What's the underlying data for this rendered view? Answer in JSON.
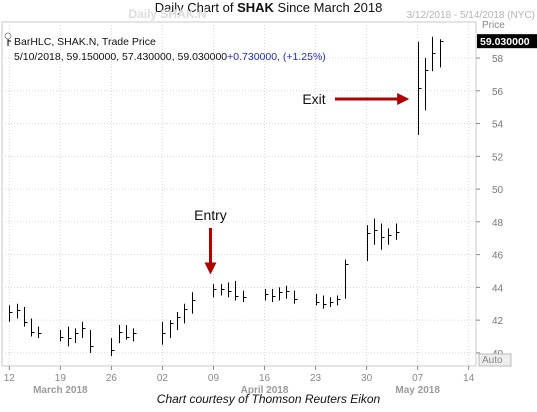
{
  "title": {
    "prefix": "Daily Chart of ",
    "ticker": "SHAK",
    "suffix": " Since March 2018"
  },
  "watermark": "Daily SHAK.N",
  "date_range_label": "3/12/2018 - 5/14/2018 (NYC)",
  "legend": {
    "line1": "BarHLC, SHAK.N, Trade Price",
    "line2_prefix": "5/10/2018, 59.150000, 57.430000, 59.030000",
    "line2_change": "+0.730000, (+1.25%)"
  },
  "price_axis": {
    "title": "Price",
    "last_price_label": "59.030000",
    "auto_label": "Auto"
  },
  "annotations": {
    "entry": "Entry",
    "exit": "Exit"
  },
  "footer": "Chart courtesy of Thomson Reuters Eikon",
  "colors": {
    "bar": "#000000",
    "arrow": "#b00000",
    "change_text": "#1f2bd6",
    "axis_label": "#8a8a8a",
    "grid": "#d8d8d8"
  },
  "chart_data": {
    "type": "bar",
    "series": [
      {
        "name": "SHAK.N",
        "bars": [
          {
            "x": "2018-03-12",
            "high": 42.9,
            "low": 41.9,
            "close": 42.5
          },
          {
            "x": "2018-03-13",
            "high": 43.0,
            "low": 42.1,
            "close": 42.6
          },
          {
            "x": "2018-03-14",
            "high": 42.8,
            "low": 41.6,
            "close": 41.9
          },
          {
            "x": "2018-03-15",
            "high": 42.1,
            "low": 41.0,
            "close": 41.3
          },
          {
            "x": "2018-03-16",
            "high": 41.6,
            "low": 40.9,
            "close": 41.2
          },
          {
            "x": "2018-03-19",
            "high": 41.4,
            "low": 40.7,
            "close": 41.0
          },
          {
            "x": "2018-03-20",
            "high": 41.6,
            "low": 40.4,
            "close": 40.9
          },
          {
            "x": "2018-03-21",
            "high": 41.5,
            "low": 40.6,
            "close": 41.2
          },
          {
            "x": "2018-03-22",
            "high": 41.9,
            "low": 40.9,
            "close": 41.5
          },
          {
            "x": "2018-03-23",
            "high": 41.4,
            "low": 40.0,
            "close": 40.4
          },
          {
            "x": "2018-03-26",
            "high": 40.9,
            "low": 39.8,
            "close": 40.2
          },
          {
            "x": "2018-03-27",
            "high": 41.7,
            "low": 40.6,
            "close": 41.3
          },
          {
            "x": "2018-03-28",
            "high": 41.7,
            "low": 40.8,
            "close": 41.0
          },
          {
            "x": "2018-03-29",
            "high": 41.5,
            "low": 40.7,
            "close": 41.2
          },
          {
            "x": "2018-04-02",
            "high": 41.9,
            "low": 40.5,
            "close": 41.2
          },
          {
            "x": "2018-04-03",
            "high": 42.0,
            "low": 40.9,
            "close": 41.8
          },
          {
            "x": "2018-04-04",
            "high": 42.5,
            "low": 41.4,
            "close": 42.2
          },
          {
            "x": "2018-04-05",
            "high": 43.0,
            "low": 41.8,
            "close": 42.7
          },
          {
            "x": "2018-04-06",
            "high": 43.7,
            "low": 42.4,
            "close": 43.2
          },
          {
            "x": "2018-04-09",
            "high": 44.2,
            "low": 43.4,
            "close": 43.9
          },
          {
            "x": "2018-04-10",
            "high": 44.2,
            "low": 43.5,
            "close": 43.9
          },
          {
            "x": "2018-04-11",
            "high": 44.3,
            "low": 43.4,
            "close": 43.8
          },
          {
            "x": "2018-04-12",
            "high": 44.4,
            "low": 43.2,
            "close": 43.5
          },
          {
            "x": "2018-04-13",
            "high": 43.8,
            "low": 43.1,
            "close": 43.4
          },
          {
            "x": "2018-04-16",
            "high": 43.9,
            "low": 43.2,
            "close": 43.6
          },
          {
            "x": "2018-04-17",
            "high": 43.9,
            "low": 43.1,
            "close": 43.5
          },
          {
            "x": "2018-04-18",
            "high": 44.0,
            "low": 43.2,
            "close": 43.7
          },
          {
            "x": "2018-04-19",
            "high": 44.1,
            "low": 43.3,
            "close": 43.8
          },
          {
            "x": "2018-04-20",
            "high": 43.8,
            "low": 43.0,
            "close": 43.3
          },
          {
            "x": "2018-04-23",
            "high": 43.6,
            "low": 42.9,
            "close": 43.1
          },
          {
            "x": "2018-04-24",
            "high": 43.5,
            "low": 42.7,
            "close": 43.0
          },
          {
            "x": "2018-04-25",
            "high": 43.4,
            "low": 42.8,
            "close": 43.1
          },
          {
            "x": "2018-04-26",
            "high": 43.5,
            "low": 42.9,
            "close": 43.3
          },
          {
            "x": "2018-04-27",
            "high": 45.7,
            "low": 43.3,
            "close": 45.4
          },
          {
            "x": "2018-04-30",
            "high": 47.8,
            "low": 45.6,
            "close": 47.3
          },
          {
            "x": "2018-05-01",
            "high": 48.2,
            "low": 46.6,
            "close": 47.5
          },
          {
            "x": "2018-05-02",
            "high": 47.9,
            "low": 46.3,
            "close": 47.1
          },
          {
            "x": "2018-05-03",
            "high": 47.6,
            "low": 46.6,
            "close": 47.2
          },
          {
            "x": "2018-05-04",
            "high": 47.9,
            "low": 46.9,
            "close": 47.4
          },
          {
            "x": "2018-05-07",
            "high": 59.0,
            "low": 53.3,
            "close": 56.2
          },
          {
            "x": "2018-05-08",
            "high": 58.0,
            "low": 54.8,
            "close": 57.3
          },
          {
            "x": "2018-05-09",
            "high": 59.3,
            "low": 57.2,
            "close": 58.3
          },
          {
            "x": "2018-05-10",
            "high": 59.15,
            "low": 57.43,
            "close": 59.03
          }
        ]
      }
    ],
    "y_ticks": [
      "40",
      "42",
      "44",
      "46",
      "48",
      "50",
      "52",
      "54",
      "56",
      "58"
    ],
    "ylim": [
      39.2,
      60.2
    ],
    "x_ticks": [
      {
        "label": "12",
        "date": "2018-03-12"
      },
      {
        "label": "19",
        "date": "2018-03-19"
      },
      {
        "label": "26",
        "date": "2018-03-26"
      },
      {
        "label": "02",
        "date": "2018-04-02"
      },
      {
        "label": "09",
        "date": "2018-04-09"
      },
      {
        "label": "16",
        "date": "2018-04-16"
      },
      {
        "label": "23",
        "date": "2018-04-23"
      },
      {
        "label": "30",
        "date": "2018-04-30"
      },
      {
        "label": "07",
        "date": "2018-05-07"
      },
      {
        "label": "14",
        "date": "2018-05-14"
      }
    ],
    "month_labels": [
      {
        "label": "March 2018",
        "date": "2018-03-19"
      },
      {
        "label": "April 2018",
        "date": "2018-04-16"
      },
      {
        "label": "May 2018",
        "date": "2018-05-07"
      }
    ],
    "xlim": [
      "2018-03-11",
      "2018-05-15"
    ],
    "grid": true,
    "entry_date": "2018-04-09",
    "exit_date": "2018-05-07"
  }
}
